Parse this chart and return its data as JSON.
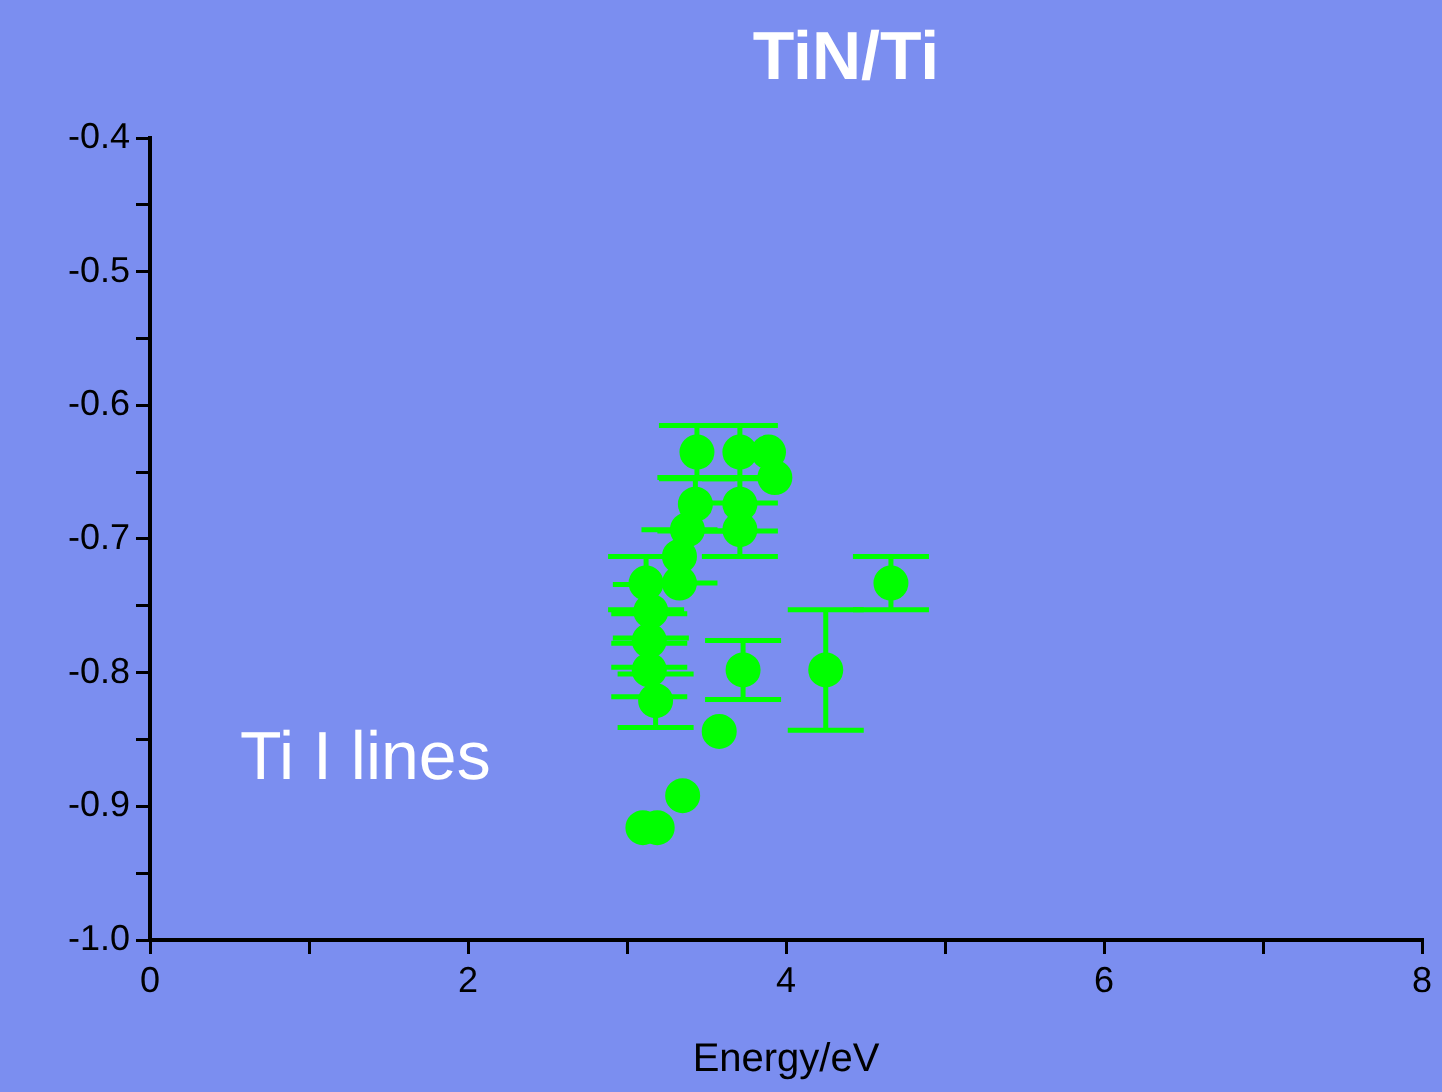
{
  "chart_data": {
    "type": "scatter",
    "title": "TiN/Ti",
    "xlabel": "Energy/eV",
    "annotations": [
      "Ti I lines"
    ],
    "xlim": [
      0,
      8
    ],
    "ylim": [
      -1.0,
      -0.4
    ],
    "xticks": [
      0,
      {
        "value": 1,
        "label": null
      },
      2,
      {
        "value": 3,
        "label": null
      },
      4,
      {
        "value": 5,
        "label": null
      },
      6,
      {
        "value": 7,
        "label": null
      },
      8
    ],
    "yticks": [
      {
        "value": -1.0,
        "label": "-1.0"
      },
      {
        "value": -0.95,
        "label": null
      },
      -0.9,
      {
        "value": -0.85,
        "label": null
      },
      -0.8,
      {
        "value": -0.75,
        "label": null
      },
      -0.7,
      {
        "value": -0.65,
        "label": null
      },
      -0.6,
      {
        "value": -0.55,
        "label": null
      },
      -0.5,
      {
        "value": -0.45,
        "label": null
      },
      -0.4
    ],
    "grid": false,
    "legend": false,
    "marker": "circle",
    "series": [
      {
        "color": "#00ff00",
        "x": [
          3.44,
          3.71,
          3.89,
          3.93,
          3.43,
          3.71,
          3.71,
          3.38,
          3.33,
          3.33,
          3.12,
          3.15,
          3.14,
          3.14,
          3.18,
          3.73,
          4.25,
          4.66,
          3.58,
          3.35,
          3.1,
          3.19
        ],
        "values": [
          -0.635,
          -0.635,
          -0.635,
          -0.654,
          -0.674,
          -0.674,
          -0.693,
          -0.693,
          -0.713,
          -0.733,
          -0.733,
          -0.754,
          -0.776,
          -0.798,
          -0.821,
          -0.798,
          -0.798,
          -0.733,
          -0.844,
          -0.892,
          -0.916,
          -0.916
        ],
        "errors": [
          0.02,
          0.02,
          null,
          null,
          0.02,
          0.02,
          0.02,
          null,
          0.02,
          null,
          0.02,
          0.02,
          0.02,
          0.02,
          0.02,
          0.022,
          0.045,
          0.02,
          null,
          null,
          null,
          null
        ]
      }
    ]
  }
}
